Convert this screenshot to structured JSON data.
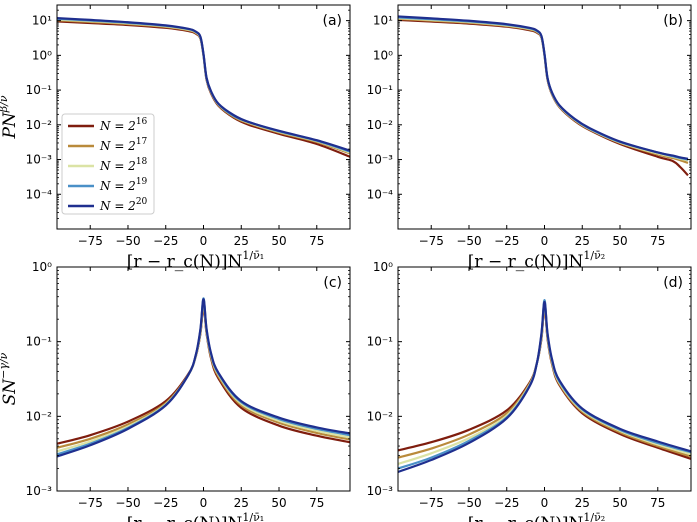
{
  "figure": {
    "legend": {
      "entries": [
        {
          "label": "N = 2^16",
          "base": "N = 2",
          "exp": "16",
          "color": "#7f1d0e"
        },
        {
          "label": "N = 2^17",
          "base": "N = 2",
          "exp": "17",
          "color": "#b98a3b"
        },
        {
          "label": "N = 2^18",
          "base": "N = 2",
          "exp": "18",
          "color": "#dbe3a5"
        },
        {
          "label": "N = 2^19",
          "base": "N = 2",
          "exp": "19",
          "color": "#4a90c7"
        },
        {
          "label": "N = 2^20",
          "base": "N = 2",
          "exp": "20",
          "color": "#1f2f8f"
        }
      ]
    }
  },
  "chart_data": [
    {
      "panel": "(a)",
      "type": "line",
      "scale_y": "log",
      "ylabel_main": "PN",
      "ylabel_sup": "β/ν̄",
      "xlabel_main": "[r − r_c(N)]N",
      "xlabel_sup": "1/ν̄₁",
      "xlim": [
        -97,
        97
      ],
      "ylim_exp": [
        -5,
        1.45
      ],
      "xticks": [
        "−75",
        "−50",
        "−25",
        "0",
        "25",
        "50",
        "75"
      ],
      "xtick_values": [
        -75,
        -50,
        -25,
        0,
        25,
        50,
        75
      ],
      "yticks": [
        "10⁻⁴",
        "10⁻³",
        "10⁻²",
        "10⁻¹",
        "10⁰",
        "10¹"
      ],
      "ytick_exps": [
        -4,
        -3,
        -2,
        -1,
        0,
        1
      ],
      "x": [
        -97,
        -75,
        -50,
        -25,
        -10,
        -5,
        -2,
        0,
        2,
        5,
        10,
        20,
        30,
        50,
        75,
        97
      ],
      "series": [
        {
          "name": "N = 2^16",
          "values": [
            9.5,
            8.5,
            7.5,
            6.2,
            5.0,
            4.2,
            3.0,
            1.0,
            0.2,
            0.08,
            0.035,
            0.016,
            0.01,
            0.0055,
            0.0028,
            0.0012
          ]
        },
        {
          "name": "N = 2^17",
          "values": [
            10.2,
            9.2,
            8.0,
            6.6,
            5.3,
            4.4,
            3.1,
            1.0,
            0.21,
            0.085,
            0.037,
            0.017,
            0.011,
            0.006,
            0.0032,
            0.0015
          ]
        },
        {
          "name": "N = 2^18",
          "values": [
            10.8,
            9.7,
            8.4,
            6.9,
            5.5,
            4.6,
            3.2,
            1.05,
            0.22,
            0.088,
            0.038,
            0.018,
            0.0115,
            0.0063,
            0.0034,
            0.0016
          ]
        },
        {
          "name": "N = 2^19",
          "values": [
            11.3,
            10.1,
            8.7,
            7.1,
            5.7,
            4.7,
            3.3,
            1.05,
            0.22,
            0.09,
            0.039,
            0.018,
            0.012,
            0.0065,
            0.0035,
            0.0017
          ]
        },
        {
          "name": "N = 2^20",
          "values": [
            11.8,
            10.5,
            9.0,
            7.3,
            5.8,
            4.8,
            3.4,
            1.1,
            0.23,
            0.092,
            0.04,
            0.019,
            0.012,
            0.0067,
            0.0036,
            0.0018
          ]
        }
      ]
    },
    {
      "panel": "(b)",
      "type": "line",
      "scale_y": "log",
      "ylabel_main": "",
      "ylabel_sup": "",
      "xlabel_main": "[r − r_c(N)]N",
      "xlabel_sup": "1/ν̄₂",
      "xlim": [
        -97,
        97
      ],
      "ylim_exp": [
        -5,
        1.45
      ],
      "xticks": [
        "−75",
        "−50",
        "−25",
        "0",
        "25",
        "50",
        "75"
      ],
      "xtick_values": [
        -75,
        -50,
        -25,
        0,
        25,
        50,
        75
      ],
      "yticks": [
        "10⁻⁴",
        "10⁻³",
        "10⁻²",
        "10⁻¹",
        "10⁰",
        "10¹"
      ],
      "ytick_exps": [
        -4,
        -3,
        -2,
        -1,
        0,
        1
      ],
      "x": [
        -97,
        -75,
        -50,
        -25,
        -10,
        -5,
        -2,
        0,
        2,
        5,
        10,
        20,
        30,
        50,
        75,
        85,
        90,
        95
      ],
      "series": [
        {
          "name": "N = 2^16",
          "values": [
            10.5,
            9.4,
            8.2,
            6.7,
            5.3,
            4.5,
            3.2,
            1.0,
            0.2,
            0.075,
            0.032,
            0.013,
            0.007,
            0.0028,
            0.0012,
            0.0009,
            0.0006,
            0.00035
          ]
        },
        {
          "name": "N = 2^17",
          "values": [
            11.2,
            10.0,
            8.7,
            7.0,
            5.6,
            4.7,
            3.3,
            1.02,
            0.21,
            0.078,
            0.033,
            0.0135,
            0.0073,
            0.003,
            0.0014,
            0.0011,
            0.00095,
            0.0008
          ]
        },
        {
          "name": "N = 2^18",
          "values": [
            11.8,
            10.5,
            9.1,
            7.3,
            5.8,
            4.9,
            3.4,
            1.05,
            0.215,
            0.08,
            0.034,
            0.014,
            0.0075,
            0.0031,
            0.0015,
            0.0012,
            0.00105,
            0.00095
          ]
        },
        {
          "name": "N = 2^19",
          "values": [
            12.4,
            11.0,
            9.5,
            7.6,
            6.0,
            5.0,
            3.5,
            1.07,
            0.22,
            0.082,
            0.035,
            0.0143,
            0.0077,
            0.0032,
            0.0016,
            0.00125,
            0.0011,
            0.001
          ]
        },
        {
          "name": "N = 2^20",
          "values": [
            13.2,
            11.6,
            9.9,
            7.9,
            6.2,
            5.2,
            3.6,
            1.1,
            0.225,
            0.085,
            0.036,
            0.0148,
            0.008,
            0.0033,
            0.0016,
            0.0013,
            0.00115,
            0.00105
          ]
        }
      ]
    },
    {
      "panel": "(c)",
      "type": "line",
      "scale_y": "log",
      "ylabel_main": "SN",
      "ylabel_sup": "−γ/ν̄",
      "xlabel_main": "[r − r_c(N)]N",
      "xlabel_sup": "1/ν̄₁",
      "xlim": [
        -97,
        97
      ],
      "ylim_exp": [
        -3,
        0
      ],
      "xticks": [
        "−75",
        "−50",
        "−25",
        "0",
        "25",
        "50",
        "75"
      ],
      "xtick_values": [
        -75,
        -50,
        -25,
        0,
        25,
        50,
        75
      ],
      "yticks": [
        "10⁻³",
        "10⁻²",
        "10⁻¹",
        "10⁰"
      ],
      "ytick_exps": [
        -3,
        -2,
        -1,
        0
      ],
      "x": [
        -97,
        -75,
        -50,
        -25,
        -10,
        -5,
        -2,
        0,
        2,
        5,
        10,
        25,
        50,
        75,
        97
      ],
      "series": [
        {
          "name": "N = 2^16",
          "values": [
            0.0043,
            0.0056,
            0.0085,
            0.016,
            0.037,
            0.065,
            0.13,
            0.3,
            0.13,
            0.06,
            0.032,
            0.013,
            0.0075,
            0.0055,
            0.0045
          ]
        },
        {
          "name": "N = 2^17",
          "values": [
            0.0038,
            0.005,
            0.0078,
            0.015,
            0.036,
            0.065,
            0.135,
            0.33,
            0.135,
            0.063,
            0.034,
            0.014,
            0.0082,
            0.006,
            0.0049
          ]
        },
        {
          "name": "N = 2^18",
          "values": [
            0.0034,
            0.0046,
            0.0073,
            0.0145,
            0.036,
            0.066,
            0.14,
            0.36,
            0.14,
            0.066,
            0.036,
            0.0148,
            0.0087,
            0.0064,
            0.0052
          ]
        },
        {
          "name": "N = 2^19",
          "values": [
            0.0031,
            0.0043,
            0.007,
            0.0142,
            0.036,
            0.067,
            0.145,
            0.38,
            0.145,
            0.068,
            0.037,
            0.0155,
            0.0092,
            0.0068,
            0.0056
          ]
        },
        {
          "name": "N = 2^20",
          "values": [
            0.0029,
            0.0041,
            0.0068,
            0.014,
            0.036,
            0.068,
            0.15,
            0.37,
            0.15,
            0.07,
            0.038,
            0.016,
            0.0096,
            0.0071,
            0.0059
          ]
        }
      ]
    },
    {
      "panel": "(d)",
      "type": "line",
      "scale_y": "log",
      "ylabel_main": "",
      "ylabel_sup": "",
      "xlabel_main": "[r − r_c(N)]N",
      "xlabel_sup": "1/ν̄₂",
      "xlim": [
        -97,
        97
      ],
      "ylim_exp": [
        -3,
        0
      ],
      "xticks": [
        "−75",
        "−50",
        "−25",
        "0",
        "25",
        "50",
        "75"
      ],
      "xtick_values": [
        -75,
        -50,
        -25,
        0,
        25,
        50,
        75
      ],
      "yticks": [
        "10⁻³",
        "10⁻²",
        "10⁻¹",
        "10⁰"
      ],
      "ytick_exps": [
        -3,
        -2,
        -1,
        0
      ],
      "x": [
        -97,
        -75,
        -50,
        -25,
        -10,
        -5,
        -2,
        0,
        2,
        5,
        10,
        25,
        50,
        75,
        97
      ],
      "series": [
        {
          "name": "N = 2^16",
          "values": [
            0.0035,
            0.0045,
            0.0066,
            0.012,
            0.028,
            0.052,
            0.11,
            0.3,
            0.11,
            0.05,
            0.026,
            0.011,
            0.0058,
            0.0038,
            0.0027
          ]
        },
        {
          "name": "N = 2^17",
          "values": [
            0.0028,
            0.0037,
            0.0057,
            0.011,
            0.027,
            0.052,
            0.115,
            0.32,
            0.115,
            0.052,
            0.027,
            0.0115,
            0.0061,
            0.004,
            0.0029
          ]
        },
        {
          "name": "N = 2^18",
          "values": [
            0.0023,
            0.0032,
            0.0051,
            0.0102,
            0.026,
            0.052,
            0.12,
            0.34,
            0.12,
            0.054,
            0.028,
            0.012,
            0.0064,
            0.0042,
            0.0031
          ]
        },
        {
          "name": "N = 2^19",
          "values": [
            0.002,
            0.0028,
            0.0047,
            0.0097,
            0.0255,
            0.052,
            0.125,
            0.36,
            0.125,
            0.056,
            0.029,
            0.0124,
            0.0066,
            0.0044,
            0.0033
          ]
        },
        {
          "name": "N = 2^20",
          "values": [
            0.0018,
            0.0026,
            0.0044,
            0.0094,
            0.025,
            0.052,
            0.13,
            0.34,
            0.13,
            0.058,
            0.03,
            0.0127,
            0.0068,
            0.0046,
            0.0034
          ]
        }
      ]
    }
  ]
}
